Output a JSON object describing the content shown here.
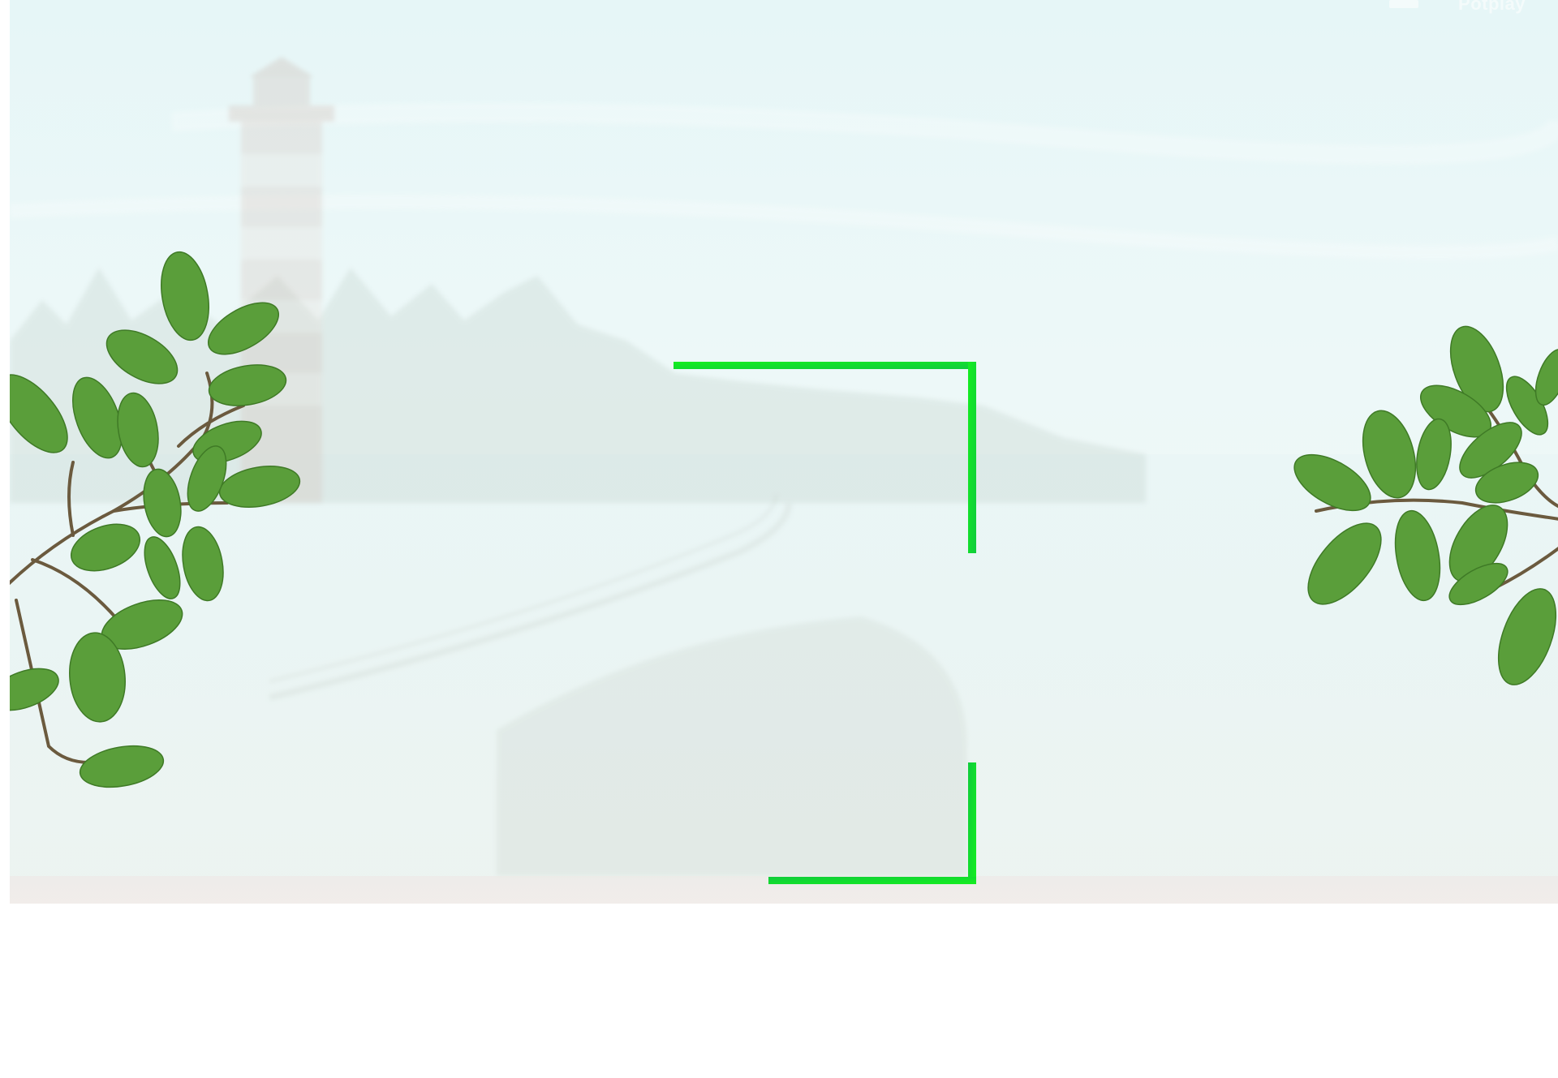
{
  "watermark": {
    "text": "Potplay"
  },
  "scene": {
    "background_color": "#e9f7f7",
    "leaf_color": "#5a9e3a",
    "bracket_color": "#17e22e"
  }
}
